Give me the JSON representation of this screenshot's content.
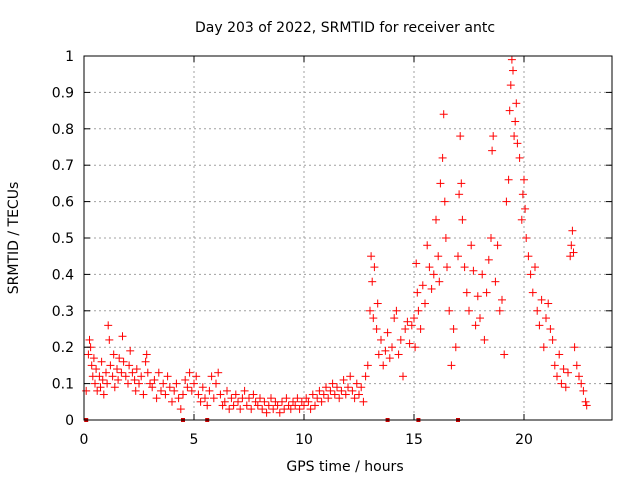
{
  "chart_data": {
    "type": "scatter",
    "title": "Day 203 of 2022, SRMTID for receiver antc",
    "xlabel": "GPS time / hours",
    "ylabel": "SRMTID / TECUs",
    "xlim": [
      0,
      24
    ],
    "ylim": [
      0,
      1
    ],
    "xticks": [
      0,
      5,
      10,
      15,
      20
    ],
    "xtick_labels": [
      "0",
      "5",
      "10",
      "15",
      "20"
    ],
    "yticks": [
      0,
      0.1,
      0.2,
      0.3,
      0.4,
      0.5,
      0.6,
      0.7,
      0.8,
      0.9,
      1
    ],
    "ytick_labels": [
      "0",
      "0.1",
      "0.2",
      "0.3",
      "0.4",
      "0.5",
      "0.6",
      "0.7",
      "0.8",
      "0.9",
      "1"
    ],
    "grid": true,
    "marker": "+",
    "color": "#ff0000",
    "series": [
      {
        "name": "SRMTID",
        "points": [
          [
            0.1,
            0.08
          ],
          [
            0.2,
            0.18
          ],
          [
            0.25,
            0.22
          ],
          [
            0.3,
            0.2
          ],
          [
            0.35,
            0.15
          ],
          [
            0.4,
            0.12
          ],
          [
            0.45,
            0.17
          ],
          [
            0.5,
            0.1
          ],
          [
            0.55,
            0.14
          ],
          [
            0.6,
            0.08
          ],
          [
            0.7,
            0.12
          ],
          [
            0.75,
            0.09
          ],
          [
            0.8,
            0.16
          ],
          [
            0.85,
            0.11
          ],
          [
            0.9,
            0.07
          ],
          [
            1.0,
            0.13
          ],
          [
            1.05,
            0.1
          ],
          [
            1.1,
            0.26
          ],
          [
            1.15,
            0.22
          ],
          [
            1.2,
            0.15
          ],
          [
            1.3,
            0.12
          ],
          [
            1.35,
            0.18
          ],
          [
            1.4,
            0.09
          ],
          [
            1.5,
            0.14
          ],
          [
            1.55,
            0.11
          ],
          [
            1.6,
            0.17
          ],
          [
            1.7,
            0.13
          ],
          [
            1.75,
            0.23
          ],
          [
            1.8,
            0.16
          ],
          [
            1.9,
            0.12
          ],
          [
            2.0,
            0.1
          ],
          [
            2.05,
            0.15
          ],
          [
            2.1,
            0.19
          ],
          [
            2.2,
            0.13
          ],
          [
            2.3,
            0.11
          ],
          [
            2.35,
            0.08
          ],
          [
            2.4,
            0.14
          ],
          [
            2.5,
            0.1
          ],
          [
            2.6,
            0.12
          ],
          [
            2.7,
            0.07
          ],
          [
            2.8,
            0.16
          ],
          [
            2.85,
            0.18
          ],
          [
            2.9,
            0.13
          ],
          [
            3.0,
            0.1
          ],
          [
            3.1,
            0.09
          ],
          [
            3.2,
            0.11
          ],
          [
            3.3,
            0.06
          ],
          [
            3.4,
            0.13
          ],
          [
            3.5,
            0.08
          ],
          [
            3.6,
            0.1
          ],
          [
            3.7,
            0.07
          ],
          [
            3.8,
            0.12
          ],
          [
            3.9,
            0.09
          ],
          [
            4.0,
            0.05
          ],
          [
            4.1,
            0.08
          ],
          [
            4.2,
            0.1
          ],
          [
            4.3,
            0.06
          ],
          [
            4.4,
            0.03
          ],
          [
            4.5,
            0.07
          ],
          [
            4.6,
            0.11
          ],
          [
            4.7,
            0.09
          ],
          [
            4.8,
            0.13
          ],
          [
            4.9,
            0.08
          ],
          [
            5.0,
            0.1
          ],
          [
            5.1,
            0.12
          ],
          [
            5.2,
            0.07
          ],
          [
            5.3,
            0.05
          ],
          [
            5.4,
            0.09
          ],
          [
            5.5,
            0.06
          ],
          [
            5.6,
            0.04
          ],
          [
            5.7,
            0.08
          ],
          [
            5.8,
            0.12
          ],
          [
            5.9,
            0.06
          ],
          [
            6.0,
            0.1
          ],
          [
            6.1,
            0.13
          ],
          [
            6.2,
            0.07
          ],
          [
            6.3,
            0.04
          ],
          [
            6.4,
            0.05
          ],
          [
            6.5,
            0.08
          ],
          [
            6.6,
            0.03
          ],
          [
            6.7,
            0.06
          ],
          [
            6.8,
            0.04
          ],
          [
            6.9,
            0.07
          ],
          [
            7.0,
            0.05
          ],
          [
            7.1,
            0.03
          ],
          [
            7.2,
            0.06
          ],
          [
            7.3,
            0.08
          ],
          [
            7.4,
            0.04
          ],
          [
            7.5,
            0.06
          ],
          [
            7.6,
            0.03
          ],
          [
            7.7,
            0.07
          ],
          [
            7.8,
            0.05
          ],
          [
            7.9,
            0.04
          ],
          [
            8.0,
            0.06
          ],
          [
            8.1,
            0.03
          ],
          [
            8.2,
            0.05
          ],
          [
            8.3,
            0.02
          ],
          [
            8.4,
            0.04
          ],
          [
            8.5,
            0.06
          ],
          [
            8.6,
            0.03
          ],
          [
            8.7,
            0.05
          ],
          [
            8.8,
            0.04
          ],
          [
            8.9,
            0.02
          ],
          [
            9.0,
            0.05
          ],
          [
            9.1,
            0.03
          ],
          [
            9.2,
            0.06
          ],
          [
            9.3,
            0.04
          ],
          [
            9.4,
            0.03
          ],
          [
            9.5,
            0.05
          ],
          [
            9.6,
            0.04
          ],
          [
            9.7,
            0.06
          ],
          [
            9.8,
            0.03
          ],
          [
            9.9,
            0.05
          ],
          [
            10.0,
            0.04
          ],
          [
            10.1,
            0.06
          ],
          [
            10.2,
            0.05
          ],
          [
            10.3,
            0.03
          ],
          [
            10.4,
            0.07
          ],
          [
            10.5,
            0.04
          ],
          [
            10.6,
            0.06
          ],
          [
            10.7,
            0.08
          ],
          [
            10.8,
            0.05
          ],
          [
            10.9,
            0.07
          ],
          [
            11.0,
            0.09
          ],
          [
            11.1,
            0.06
          ],
          [
            11.2,
            0.08
          ],
          [
            11.3,
            0.1
          ],
          [
            11.4,
            0.07
          ],
          [
            11.5,
            0.09
          ],
          [
            11.6,
            0.06
          ],
          [
            11.7,
            0.08
          ],
          [
            11.8,
            0.11
          ],
          [
            11.9,
            0.07
          ],
          [
            12.0,
            0.09
          ],
          [
            12.1,
            0.12
          ],
          [
            12.2,
            0.08
          ],
          [
            12.3,
            0.06
          ],
          [
            12.4,
            0.1
          ],
          [
            12.5,
            0.07
          ],
          [
            12.6,
            0.09
          ],
          [
            12.7,
            0.05
          ],
          [
            12.8,
            0.12
          ],
          [
            12.9,
            0.15
          ],
          [
            13.0,
            0.3
          ],
          [
            13.05,
            0.45
          ],
          [
            13.1,
            0.38
          ],
          [
            13.15,
            0.28
          ],
          [
            13.2,
            0.42
          ],
          [
            13.3,
            0.25
          ],
          [
            13.35,
            0.32
          ],
          [
            13.4,
            0.18
          ],
          [
            13.5,
            0.22
          ],
          [
            13.6,
            0.15
          ],
          [
            13.7,
            0.19
          ],
          [
            13.8,
            0.24
          ],
          [
            13.9,
            0.17
          ],
          [
            14.0,
            0.2
          ],
          [
            14.1,
            0.28
          ],
          [
            14.2,
            0.3
          ],
          [
            14.3,
            0.18
          ],
          [
            14.4,
            0.22
          ],
          [
            14.5,
            0.12
          ],
          [
            14.6,
            0.25
          ],
          [
            14.7,
            0.27
          ],
          [
            14.8,
            0.21
          ],
          [
            14.9,
            0.26
          ],
          [
            15.0,
            0.28
          ],
          [
            15.05,
            0.2
          ],
          [
            15.1,
            0.43
          ],
          [
            15.15,
            0.35
          ],
          [
            15.2,
            0.3
          ],
          [
            15.3,
            0.25
          ],
          [
            15.4,
            0.37
          ],
          [
            15.5,
            0.32
          ],
          [
            15.6,
            0.48
          ],
          [
            15.7,
            0.42
          ],
          [
            15.8,
            0.36
          ],
          [
            15.9,
            0.4
          ],
          [
            16.0,
            0.55
          ],
          [
            16.1,
            0.45
          ],
          [
            16.15,
            0.38
          ],
          [
            16.2,
            0.65
          ],
          [
            16.3,
            0.72
          ],
          [
            16.35,
            0.84
          ],
          [
            16.4,
            0.6
          ],
          [
            16.45,
            0.5
          ],
          [
            16.5,
            0.42
          ],
          [
            16.6,
            0.3
          ],
          [
            16.7,
            0.15
          ],
          [
            16.8,
            0.25
          ],
          [
            16.9,
            0.2
          ],
          [
            17.0,
            0.45
          ],
          [
            17.05,
            0.62
          ],
          [
            17.1,
            0.78
          ],
          [
            17.15,
            0.65
          ],
          [
            17.2,
            0.55
          ],
          [
            17.3,
            0.42
          ],
          [
            17.4,
            0.35
          ],
          [
            17.5,
            0.3
          ],
          [
            17.6,
            0.48
          ],
          [
            17.7,
            0.41
          ],
          [
            17.8,
            0.26
          ],
          [
            17.9,
            0.34
          ],
          [
            18.0,
            0.28
          ],
          [
            18.1,
            0.4
          ],
          [
            18.2,
            0.22
          ],
          [
            18.3,
            0.35
          ],
          [
            18.4,
            0.44
          ],
          [
            18.5,
            0.5
          ],
          [
            18.55,
            0.74
          ],
          [
            18.6,
            0.78
          ],
          [
            18.7,
            0.38
          ],
          [
            18.8,
            0.48
          ],
          [
            18.9,
            0.3
          ],
          [
            19.0,
            0.33
          ],
          [
            19.1,
            0.18
          ],
          [
            19.2,
            0.6
          ],
          [
            19.3,
            0.66
          ],
          [
            19.35,
            0.85
          ],
          [
            19.4,
            0.92
          ],
          [
            19.45,
            0.99
          ],
          [
            19.5,
            0.96
          ],
          [
            19.55,
            0.78
          ],
          [
            19.6,
            0.82
          ],
          [
            19.65,
            0.87
          ],
          [
            19.7,
            0.76
          ],
          [
            19.8,
            0.72
          ],
          [
            19.9,
            0.55
          ],
          [
            19.95,
            0.62
          ],
          [
            20.0,
            0.66
          ],
          [
            20.05,
            0.58
          ],
          [
            20.1,
            0.5
          ],
          [
            20.2,
            0.45
          ],
          [
            20.3,
            0.4
          ],
          [
            20.4,
            0.35
          ],
          [
            20.5,
            0.42
          ],
          [
            20.6,
            0.3
          ],
          [
            20.7,
            0.26
          ],
          [
            20.8,
            0.33
          ],
          [
            20.9,
            0.2
          ],
          [
            21.0,
            0.28
          ],
          [
            21.1,
            0.32
          ],
          [
            21.2,
            0.25
          ],
          [
            21.3,
            0.22
          ],
          [
            21.4,
            0.15
          ],
          [
            21.5,
            0.12
          ],
          [
            21.6,
            0.18
          ],
          [
            21.7,
            0.1
          ],
          [
            21.8,
            0.14
          ],
          [
            21.9,
            0.09
          ],
          [
            22.0,
            0.13
          ],
          [
            22.1,
            0.45
          ],
          [
            22.15,
            0.48
          ],
          [
            22.2,
            0.52
          ],
          [
            22.25,
            0.46
          ],
          [
            22.3,
            0.2
          ],
          [
            22.4,
            0.15
          ],
          [
            22.5,
            0.12
          ],
          [
            22.6,
            0.1
          ],
          [
            22.7,
            0.08
          ],
          [
            22.8,
            0.05
          ],
          [
            22.85,
            0.04
          ]
        ]
      }
    ],
    "gap_markers_x": [
      0.1,
      4.5,
      5.6,
      13.8,
      15.2,
      17.0
    ]
  }
}
